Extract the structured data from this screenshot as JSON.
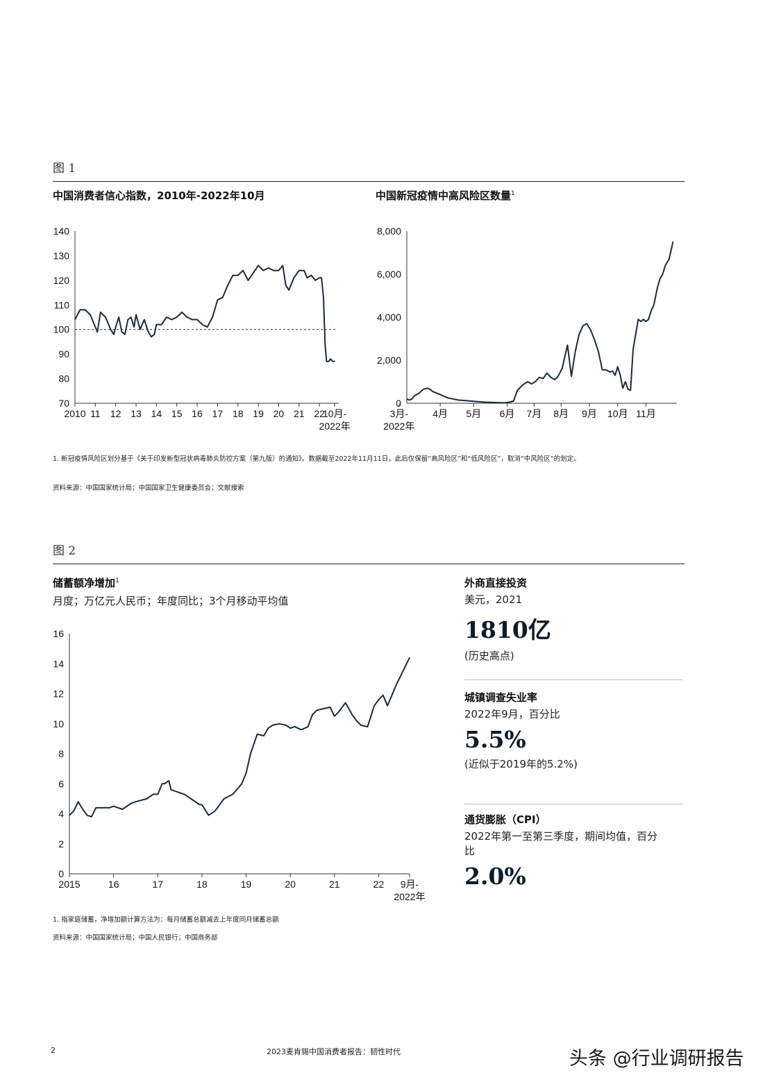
{
  "figure1": {
    "label": "图 1",
    "left_chart": {
      "title": "中国消费者信心指数，2010年-2022年10月",
      "chart_data": {
        "type": "line",
        "title": "中国消费者信心指数，2010年-2022年10月",
        "xlabel": "",
        "ylabel": "",
        "ylim": [
          70,
          140
        ],
        "yticks": [
          "70",
          "80",
          "90",
          "100",
          "110",
          "120",
          "130",
          "140"
        ],
        "xtick_labels": [
          "2010",
          "11",
          "12",
          "13",
          "14",
          "15",
          "16",
          "17",
          "18",
          "19",
          "20",
          "21",
          "22"
        ],
        "xtick_last_line1": "10月-",
        "xtick_last_line2": "2022年",
        "reference_line": 100,
        "x": [
          2010.0,
          2010.25,
          2010.5,
          2010.75,
          2011.0,
          2011.1,
          2011.25,
          2011.5,
          2011.75,
          2011.9,
          2012.0,
          2012.15,
          2012.3,
          2012.45,
          2012.6,
          2012.75,
          2012.9,
          2013.0,
          2013.2,
          2013.4,
          2013.6,
          2013.75,
          2013.9,
          2014.0,
          2014.25,
          2014.5,
          2014.75,
          2015.0,
          2015.25,
          2015.5,
          2015.75,
          2016.0,
          2016.25,
          2016.5,
          2016.75,
          2017.0,
          2017.25,
          2017.5,
          2017.75,
          2018.0,
          2018.25,
          2018.5,
          2018.75,
          2019.0,
          2019.25,
          2019.5,
          2019.75,
          2020.0,
          2020.2,
          2020.35,
          2020.5,
          2020.75,
          2021.0,
          2021.25,
          2021.4,
          2021.6,
          2021.8,
          2022.0,
          2022.1,
          2022.2,
          2022.28,
          2022.35,
          2022.45,
          2022.55,
          2022.65,
          2022.75
        ],
        "values": [
          104,
          108,
          108,
          106,
          101,
          99,
          107,
          105,
          100,
          98,
          101,
          105,
          99,
          98,
          104,
          105,
          101,
          106,
          100,
          104,
          99,
          97,
          98,
          102,
          102,
          105,
          104,
          105,
          107,
          105,
          104,
          104,
          102,
          101,
          105,
          112,
          113,
          118,
          122,
          122,
          124,
          120,
          123,
          126,
          124,
          125,
          124,
          124,
          126,
          118,
          116,
          121,
          124,
          124,
          121,
          122,
          120,
          121,
          121,
          113,
          94,
          87,
          87,
          88,
          87,
          87
        ]
      }
    },
    "right_chart": {
      "title": "中国新冠疫情中高风险区数量",
      "sup": "1",
      "chart_data": {
        "type": "line",
        "title": "中国新冠疫情中高风险区数量",
        "xlabel": "",
        "ylabel": "",
        "ylim": [
          0,
          8000
        ],
        "yticks": [
          "0",
          "2,000",
          "4,000",
          "6,000",
          "8,000"
        ],
        "xtick_first_line1": "3月-",
        "xtick_first_line2": "2022年",
        "xtick_labels": [
          "4月",
          "5月",
          "6月",
          "7月",
          "8月",
          "9月",
          "10月",
          "11月"
        ],
        "x": [
          0,
          0.1,
          0.2,
          0.3,
          0.45,
          0.65,
          0.8,
          0.9,
          1.0,
          1.3,
          1.6,
          2.0,
          2.5,
          3.0,
          3.5,
          3.8,
          4.0,
          4.15,
          4.3,
          4.5,
          4.7,
          4.85,
          5.0,
          5.15,
          5.3,
          5.45,
          5.6,
          5.75,
          5.85,
          5.95,
          6.05,
          6.15,
          6.25,
          6.4,
          6.55,
          6.7,
          6.85,
          7.0,
          7.15,
          7.3,
          7.45,
          7.6,
          7.75,
          7.9,
          8.0,
          8.1,
          8.2,
          8.3,
          8.4,
          8.5,
          8.6,
          8.7,
          8.8,
          8.9,
          9.0,
          9.1,
          9.2,
          9.3,
          9.4,
          9.5,
          9.6,
          9.75,
          9.85,
          9.95,
          10.05,
          10.2,
          10.35
        ],
        "values": [
          200,
          150,
          200,
          350,
          450,
          650,
          700,
          650,
          550,
          400,
          250,
          150,
          100,
          50,
          30,
          20,
          50,
          100,
          600,
          850,
          1000,
          900,
          1000,
          1200,
          1150,
          1400,
          1200,
          1100,
          1200,
          1400,
          1650,
          2200,
          2700,
          1250,
          2400,
          3200,
          3600,
          3700,
          3400,
          2950,
          2400,
          1550,
          1550,
          1450,
          1500,
          1300,
          1700,
          1300,
          700,
          1000,
          650,
          600,
          2500,
          3200,
          3900,
          3800,
          3900,
          3800,
          3900,
          4300,
          4550,
          5400,
          5800,
          6000,
          6400,
          6700,
          7500
        ]
      }
    },
    "footnote": "1. 新冠疫情风险区划分基于《关于印发新型冠状病毒肺炎防控方案（第九版）的通知》。数据截至2022年11月11日，此后仅保留“高风险区”和“低风险区”，取消“中风险区”的划定。",
    "source": "资料来源：中国国家统计局；中国国家卫生健康委员会；文献搜索"
  },
  "figure2": {
    "label": "图 2",
    "chart": {
      "title": "储蓄额净增加",
      "sup": "1",
      "subtitle": "月度；万亿元人民币；年度同比；3个月移动平均值",
      "chart_data": {
        "type": "line",
        "title": "储蓄额净增加",
        "xlabel": "",
        "ylabel": "月度；万亿元人民币；年度同比；3个月移动平均值",
        "ylim": [
          0,
          16
        ],
        "yticks": [
          "0",
          "2",
          "4",
          "6",
          "8",
          "10",
          "12",
          "14",
          "16"
        ],
        "xtick_labels": [
          "2015",
          "16",
          "17",
          "18",
          "19",
          "20",
          "21",
          "22"
        ],
        "xtick_last_line1": "9月-",
        "xtick_last_line2": "2022年",
        "x": [
          2015.0,
          2015.1,
          2015.2,
          2015.3,
          2015.4,
          2015.5,
          2015.6,
          2015.75,
          2015.9,
          2016.0,
          2016.2,
          2016.4,
          2016.5,
          2016.75,
          2016.9,
          2017.0,
          2017.1,
          2017.15,
          2017.25,
          2017.3,
          2017.4,
          2017.6,
          2017.8,
          2017.95,
          2018.0,
          2018.15,
          2018.3,
          2018.5,
          2018.7,
          2018.9,
          2019.0,
          2019.1,
          2019.25,
          2019.4,
          2019.5,
          2019.6,
          2019.75,
          2019.9,
          2020.0,
          2020.1,
          2020.25,
          2020.4,
          2020.5,
          2020.6,
          2020.75,
          2020.9,
          2021.0,
          2021.1,
          2021.25,
          2021.4,
          2021.5,
          2021.6,
          2021.75,
          2021.9,
          2022.0,
          2022.1,
          2022.2,
          2022.3,
          2022.4,
          2022.5,
          2022.6,
          2022.7
        ],
        "values": [
          3.9,
          4.2,
          4.8,
          4.3,
          3.9,
          3.8,
          4.4,
          4.4,
          4.4,
          4.5,
          4.3,
          4.7,
          4.8,
          5.0,
          5.3,
          5.3,
          6.0,
          6.0,
          6.2,
          5.6,
          5.5,
          5.3,
          4.9,
          4.6,
          4.6,
          3.9,
          4.2,
          5.0,
          5.3,
          6.0,
          6.7,
          8.0,
          9.3,
          9.2,
          9.7,
          9.9,
          10.0,
          9.9,
          9.7,
          9.8,
          9.6,
          9.8,
          10.6,
          10.9,
          11.0,
          11.1,
          10.5,
          10.8,
          11.4,
          10.6,
          10.2,
          9.9,
          9.8,
          11.2,
          11.6,
          11.9,
          11.2,
          11.9,
          12.6,
          13.2,
          13.8,
          14.4
        ]
      }
    },
    "stats": [
      {
        "title": "外商直接投资",
        "sub": "美元，2021",
        "value": "1810亿",
        "note": "(历史高点)"
      },
      {
        "title": "城镇调查失业率",
        "sub": "2022年9月，百分比",
        "value": "5.5%",
        "note": "(近似于2019年的5.2%)"
      },
      {
        "title": "通货膨胀（CPI）",
        "sub": "2022年第一至第三季度，期间均值，百分比",
        "value": "2.0%",
        "note": ""
      }
    ],
    "footnote": "1. 指家庭储蓄，净增加额计算方法为：每月储蓄总额减去上年度同月储蓄总额",
    "source": "资料来源：中国国家统计局；中国人民银行；中国商务部"
  },
  "footer": {
    "page_number": "2",
    "report_title": "2023麦肯锡中国消费者报告：韧性时代",
    "watermark": "头条 @行业调研报告"
  },
  "colors": {
    "line": "#1b2a3a",
    "text": "#111111",
    "accent": "#0d1b2a"
  }
}
